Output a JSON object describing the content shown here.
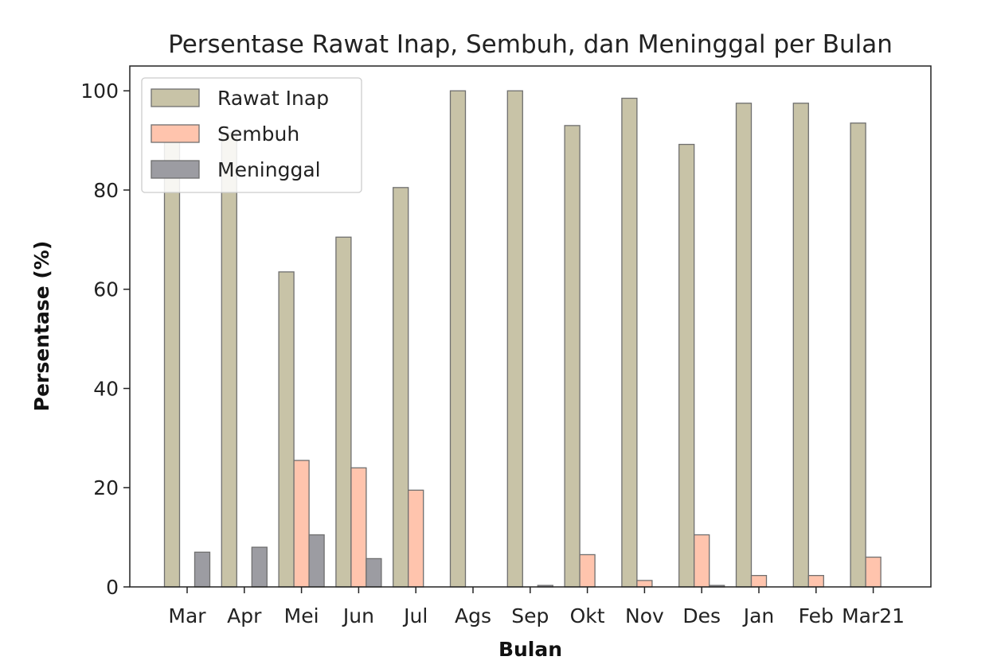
{
  "chart_data": {
    "type": "bar",
    "title": "Persentase Rawat Inap, Sembuh, dan Meninggal per Bulan",
    "xlabel": "Bulan",
    "ylabel": "Persentase (%)",
    "ylim": [
      0,
      105
    ],
    "yticks": [
      0,
      20,
      40,
      60,
      80,
      100
    ],
    "categories": [
      "Mar",
      "Apr",
      "Mei",
      "Jun",
      "Jul",
      "Ags",
      "Sep",
      "Okt",
      "Nov",
      "Des",
      "Jan",
      "Feb",
      "Mar21"
    ],
    "series": [
      {
        "name": "Rawat Inap",
        "color": "#c8c3a7",
        "values": [
          91.5,
          91.5,
          63.5,
          70.5,
          80.5,
          100,
          100,
          93,
          98.5,
          89.2,
          97.5,
          97.5,
          93.5
        ]
      },
      {
        "name": "Sembuh",
        "color": "#ffc4ad",
        "values": [
          0,
          0,
          25.5,
          24,
          19.5,
          0,
          0,
          6.5,
          1.3,
          10.5,
          2.3,
          2.3,
          6
        ]
      },
      {
        "name": "Meninggal",
        "color": "#9c9ca2",
        "values": [
          7,
          8,
          10.5,
          5.7,
          0,
          0,
          0.3,
          0,
          0,
          0.3,
          0,
          0,
          0
        ]
      }
    ],
    "legend": "top-left",
    "grid": false
  }
}
